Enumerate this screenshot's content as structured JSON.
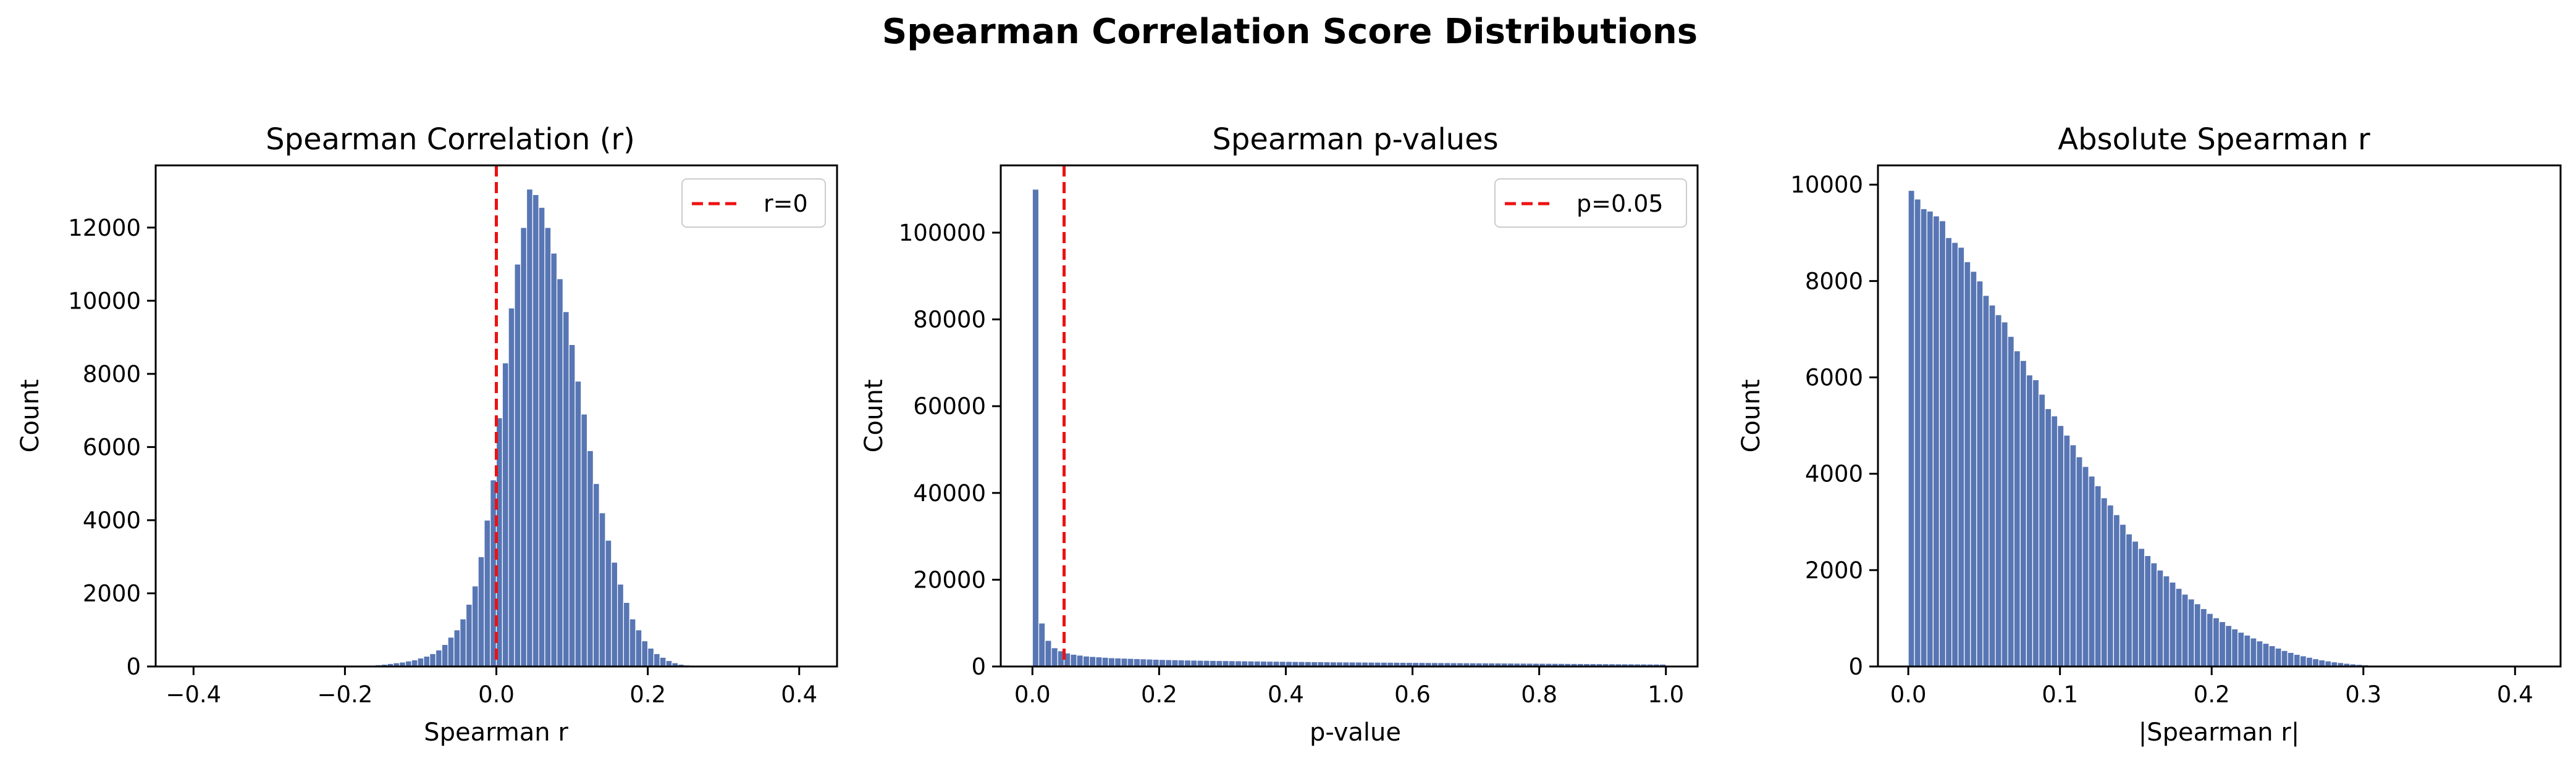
{
  "figure_title": "Spearman Correlation Score Distributions",
  "colors": {
    "bar": "#5876b4",
    "bar_edge": "#ffffff",
    "ref_line": "#ee1111",
    "axes": "#000000"
  },
  "chart_data": [
    {
      "type": "histogram",
      "title": "Spearman Correlation (r)",
      "xlabel": "Spearman r",
      "ylabel": "Count",
      "xlim": [
        -0.45,
        0.45
      ],
      "ylim": [
        0,
        13700
      ],
      "xticks": [
        -0.4,
        -0.2,
        0.0,
        0.2,
        0.4
      ],
      "xtick_labels": [
        "−0.4",
        "−0.2",
        "0.0",
        "0.2",
        "0.4"
      ],
      "yticks": [
        0,
        2000,
        4000,
        6000,
        8000,
        10000,
        12000
      ],
      "ytick_labels": [
        "0",
        "2000",
        "4000",
        "6000",
        "8000",
        "10000",
        "12000"
      ],
      "bin_start": -0.4,
      "bin_width": 0.008,
      "counts": [
        0,
        0,
        0,
        0,
        0,
        0,
        0,
        0,
        0,
        0,
        0,
        0,
        0,
        0,
        0,
        0,
        0,
        0,
        0,
        0,
        0,
        0,
        0,
        0,
        0,
        2,
        5,
        10,
        20,
        30,
        45,
        60,
        80,
        100,
        120,
        150,
        180,
        230,
        280,
        350,
        450,
        600,
        800,
        1000,
        1300,
        1700,
        2200,
        3000,
        4000,
        5100,
        6800,
        8300,
        9800,
        11000,
        12000,
        13050,
        12900,
        12550,
        12000,
        11300,
        10600,
        9700,
        8800,
        7800,
        6900,
        5900,
        5000,
        4200,
        3450,
        2850,
        2250,
        1750,
        1300,
        1000,
        700,
        500,
        350,
        250,
        160,
        100,
        60,
        40,
        20,
        10,
        5,
        2,
        0,
        0,
        0,
        0,
        0,
        0,
        0,
        0,
        0,
        0,
        0,
        0,
        0,
        0
      ],
      "ref_line": {
        "x": 0.0,
        "label": "r=0"
      },
      "legend_position": "upper right"
    },
    {
      "type": "histogram",
      "title": "Spearman p-values",
      "xlabel": "p-value",
      "ylabel": "Count",
      "xlim": [
        -0.05,
        1.05
      ],
      "ylim": [
        0,
        115500
      ],
      "xticks": [
        0.0,
        0.2,
        0.4,
        0.6,
        0.8,
        1.0
      ],
      "xtick_labels": [
        "0.0",
        "0.2",
        "0.4",
        "0.6",
        "0.8",
        "1.0"
      ],
      "yticks": [
        0,
        20000,
        40000,
        60000,
        80000,
        100000
      ],
      "ytick_labels": [
        "0",
        "20000",
        "40000",
        "60000",
        "80000",
        "100000"
      ],
      "bin_start": 0.0,
      "bin_width": 0.01,
      "counts": [
        110000,
        10000,
        6000,
        4300,
        3600,
        3100,
        2800,
        2600,
        2400,
        2300,
        2200,
        2100,
        2000,
        1950,
        1900,
        1850,
        1800,
        1750,
        1700,
        1650,
        1600,
        1570,
        1540,
        1510,
        1480,
        1450,
        1420,
        1400,
        1380,
        1360,
        1340,
        1320,
        1300,
        1280,
        1260,
        1240,
        1220,
        1200,
        1185,
        1170,
        1155,
        1140,
        1125,
        1110,
        1095,
        1080,
        1065,
        1050,
        1040,
        1030,
        1020,
        1010,
        1000,
        990,
        980,
        970,
        960,
        950,
        940,
        930,
        920,
        910,
        900,
        890,
        880,
        870,
        860,
        850,
        840,
        830,
        820,
        810,
        800,
        790,
        780,
        770,
        760,
        750,
        740,
        730,
        720,
        710,
        700,
        690,
        680,
        670,
        660,
        650,
        640,
        630,
        620,
        610,
        600,
        590,
        580,
        570,
        560,
        550,
        540,
        530
      ],
      "ref_line": {
        "x": 0.05,
        "label": "p=0.05"
      },
      "legend_position": "upper right"
    },
    {
      "type": "histogram",
      "title": "Absolute Spearman r",
      "xlabel": "|Spearman r|",
      "ylabel": "Count",
      "xlim": [
        -0.02,
        0.43
      ],
      "ylim": [
        0,
        10400
      ],
      "xticks": [
        0.0,
        0.1,
        0.2,
        0.3,
        0.4
      ],
      "xtick_labels": [
        "0.0",
        "0.1",
        "0.2",
        "0.3",
        "0.4"
      ],
      "yticks": [
        0,
        2000,
        4000,
        6000,
        8000,
        10000
      ],
      "ytick_labels": [
        "0",
        "2000",
        "4000",
        "6000",
        "8000",
        "10000"
      ],
      "bin_start": 0.0,
      "bin_width": 0.0041,
      "counts": [
        9880,
        9700,
        9500,
        9450,
        9350,
        9250,
        8900,
        8800,
        8700,
        8400,
        8200,
        8000,
        7700,
        7500,
        7300,
        7150,
        6850,
        6550,
        6350,
        6050,
        5950,
        5650,
        5350,
        5200,
        5000,
        4800,
        4600,
        4350,
        4150,
        3950,
        3750,
        3500,
        3350,
        3150,
        2950,
        2750,
        2600,
        2450,
        2300,
        2150,
        2000,
        1880,
        1750,
        1620,
        1500,
        1400,
        1300,
        1200,
        1100,
        1010,
        930,
        850,
        780,
        710,
        650,
        590,
        530,
        480,
        430,
        380,
        330,
        290,
        250,
        220,
        190,
        160,
        135,
        115,
        95,
        80,
        65,
        52,
        42,
        33,
        25,
        18,
        12,
        8,
        5,
        3,
        2,
        1,
        0,
        0,
        0,
        0,
        0,
        0,
        0,
        0,
        0,
        0,
        0,
        0,
        0,
        0,
        0,
        0,
        0,
        0
      ],
      "legend_position": null
    }
  ]
}
